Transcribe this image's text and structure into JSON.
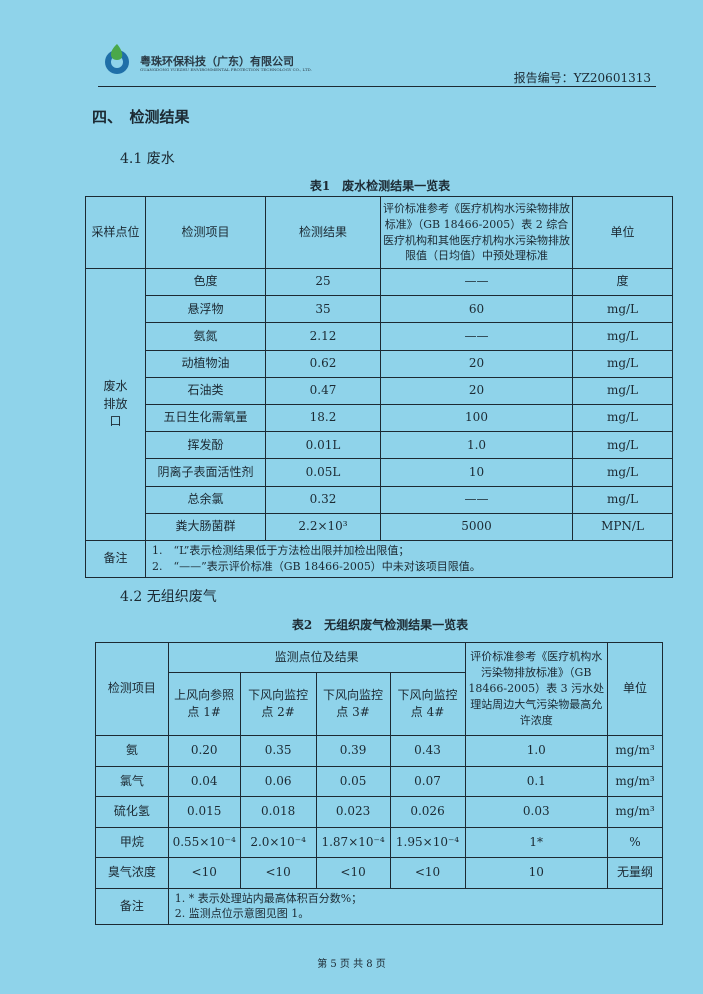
{
  "header": {
    "company": "粤珠环保科技（广东）有限公司",
    "company_en": "GUANGDONG YUEZHU ENVIRONMENTAL PROTECTION TECHNOLOGY CO., LTD.",
    "report_no": "报告编号：YZ20601313"
  },
  "section": {
    "title": "四、　检测结果",
    "wastewater": "4.1 废水",
    "waste_gas": "4.2 无组织废气"
  },
  "table1": {
    "caption": "表1　废水检测结果一览表",
    "headers": [
      "采样点位",
      "检测项目",
      "检测结果",
      "评价标准参考《医疗机构水污染物排放标准》（GB 18466-2005）表 2 综合医疗机构和其他医疗机构水污染物排放限值（日均值）中预处理标准",
      "单位"
    ],
    "location": "废水排放口",
    "rows": [
      [
        "色度",
        "25",
        "——",
        "度"
      ],
      [
        "悬浮物",
        "35",
        "60",
        "mg/L"
      ],
      [
        "氨氮",
        "2.12",
        "——",
        "mg/L"
      ],
      [
        "动植物油",
        "0.62",
        "20",
        "mg/L"
      ],
      [
        "石油类",
        "0.47",
        "20",
        "mg/L"
      ],
      [
        "五日生化需氧量",
        "18.2",
        "100",
        "mg/L"
      ],
      [
        "挥发酚",
        "0.01L",
        "1.0",
        "mg/L"
      ],
      [
        "阴离子表面活性剂",
        "0.05L",
        "10",
        "mg/L"
      ],
      [
        "总余氯",
        "0.32",
        "——",
        "mg/L"
      ],
      [
        "粪大肠菌群",
        "2.2×10³",
        "5000",
        "MPN/L"
      ]
    ],
    "notes_label": "备注",
    "notes": [
      "1.　“L”表示检测结果低于方法检出限并加检出限值；",
      "2.　“——”表示评价标准（GB 18466-2005）中未对该项目限值。"
    ]
  },
  "table2": {
    "caption": "表2　无组织废气检测结果一览表",
    "headers": {
      "item": "检测项目",
      "group": "监测点位及结果",
      "points": [
        "上风向参照点 1#",
        "下风向监控点 2#",
        "下风向监控点 3#",
        "下风向监控点 4#"
      ],
      "standard": "评价标准参考《医疗机构水污染物排放标准》（GB 18466-2005）表 3 污水处理站周边大气污染物最高允许浓度",
      "unit": "单位"
    },
    "rows": [
      [
        "氨",
        "0.20",
        "0.35",
        "0.39",
        "0.43",
        "1.0",
        "mg/m³"
      ],
      [
        "氯气",
        "0.04",
        "0.06",
        "0.05",
        "0.07",
        "0.1",
        "mg/m³"
      ],
      [
        "硫化氢",
        "0.015",
        "0.018",
        "0.023",
        "0.026",
        "0.03",
        "mg/m³"
      ],
      [
        "甲烷",
        "0.55×10⁻⁴",
        "2.0×10⁻⁴",
        "1.87×10⁻⁴",
        "1.95×10⁻⁴",
        "1*",
        "%"
      ],
      [
        "臭气浓度",
        "<10",
        "<10",
        "<10",
        "<10",
        "10",
        "无量纲"
      ]
    ],
    "notes_label": "备注",
    "notes": [
      "1. * 表示处理站内最高体积百分数%；",
      "2. 监测点位示意图见图 1。"
    ]
  },
  "footer": "第 5 页 共 8 页"
}
